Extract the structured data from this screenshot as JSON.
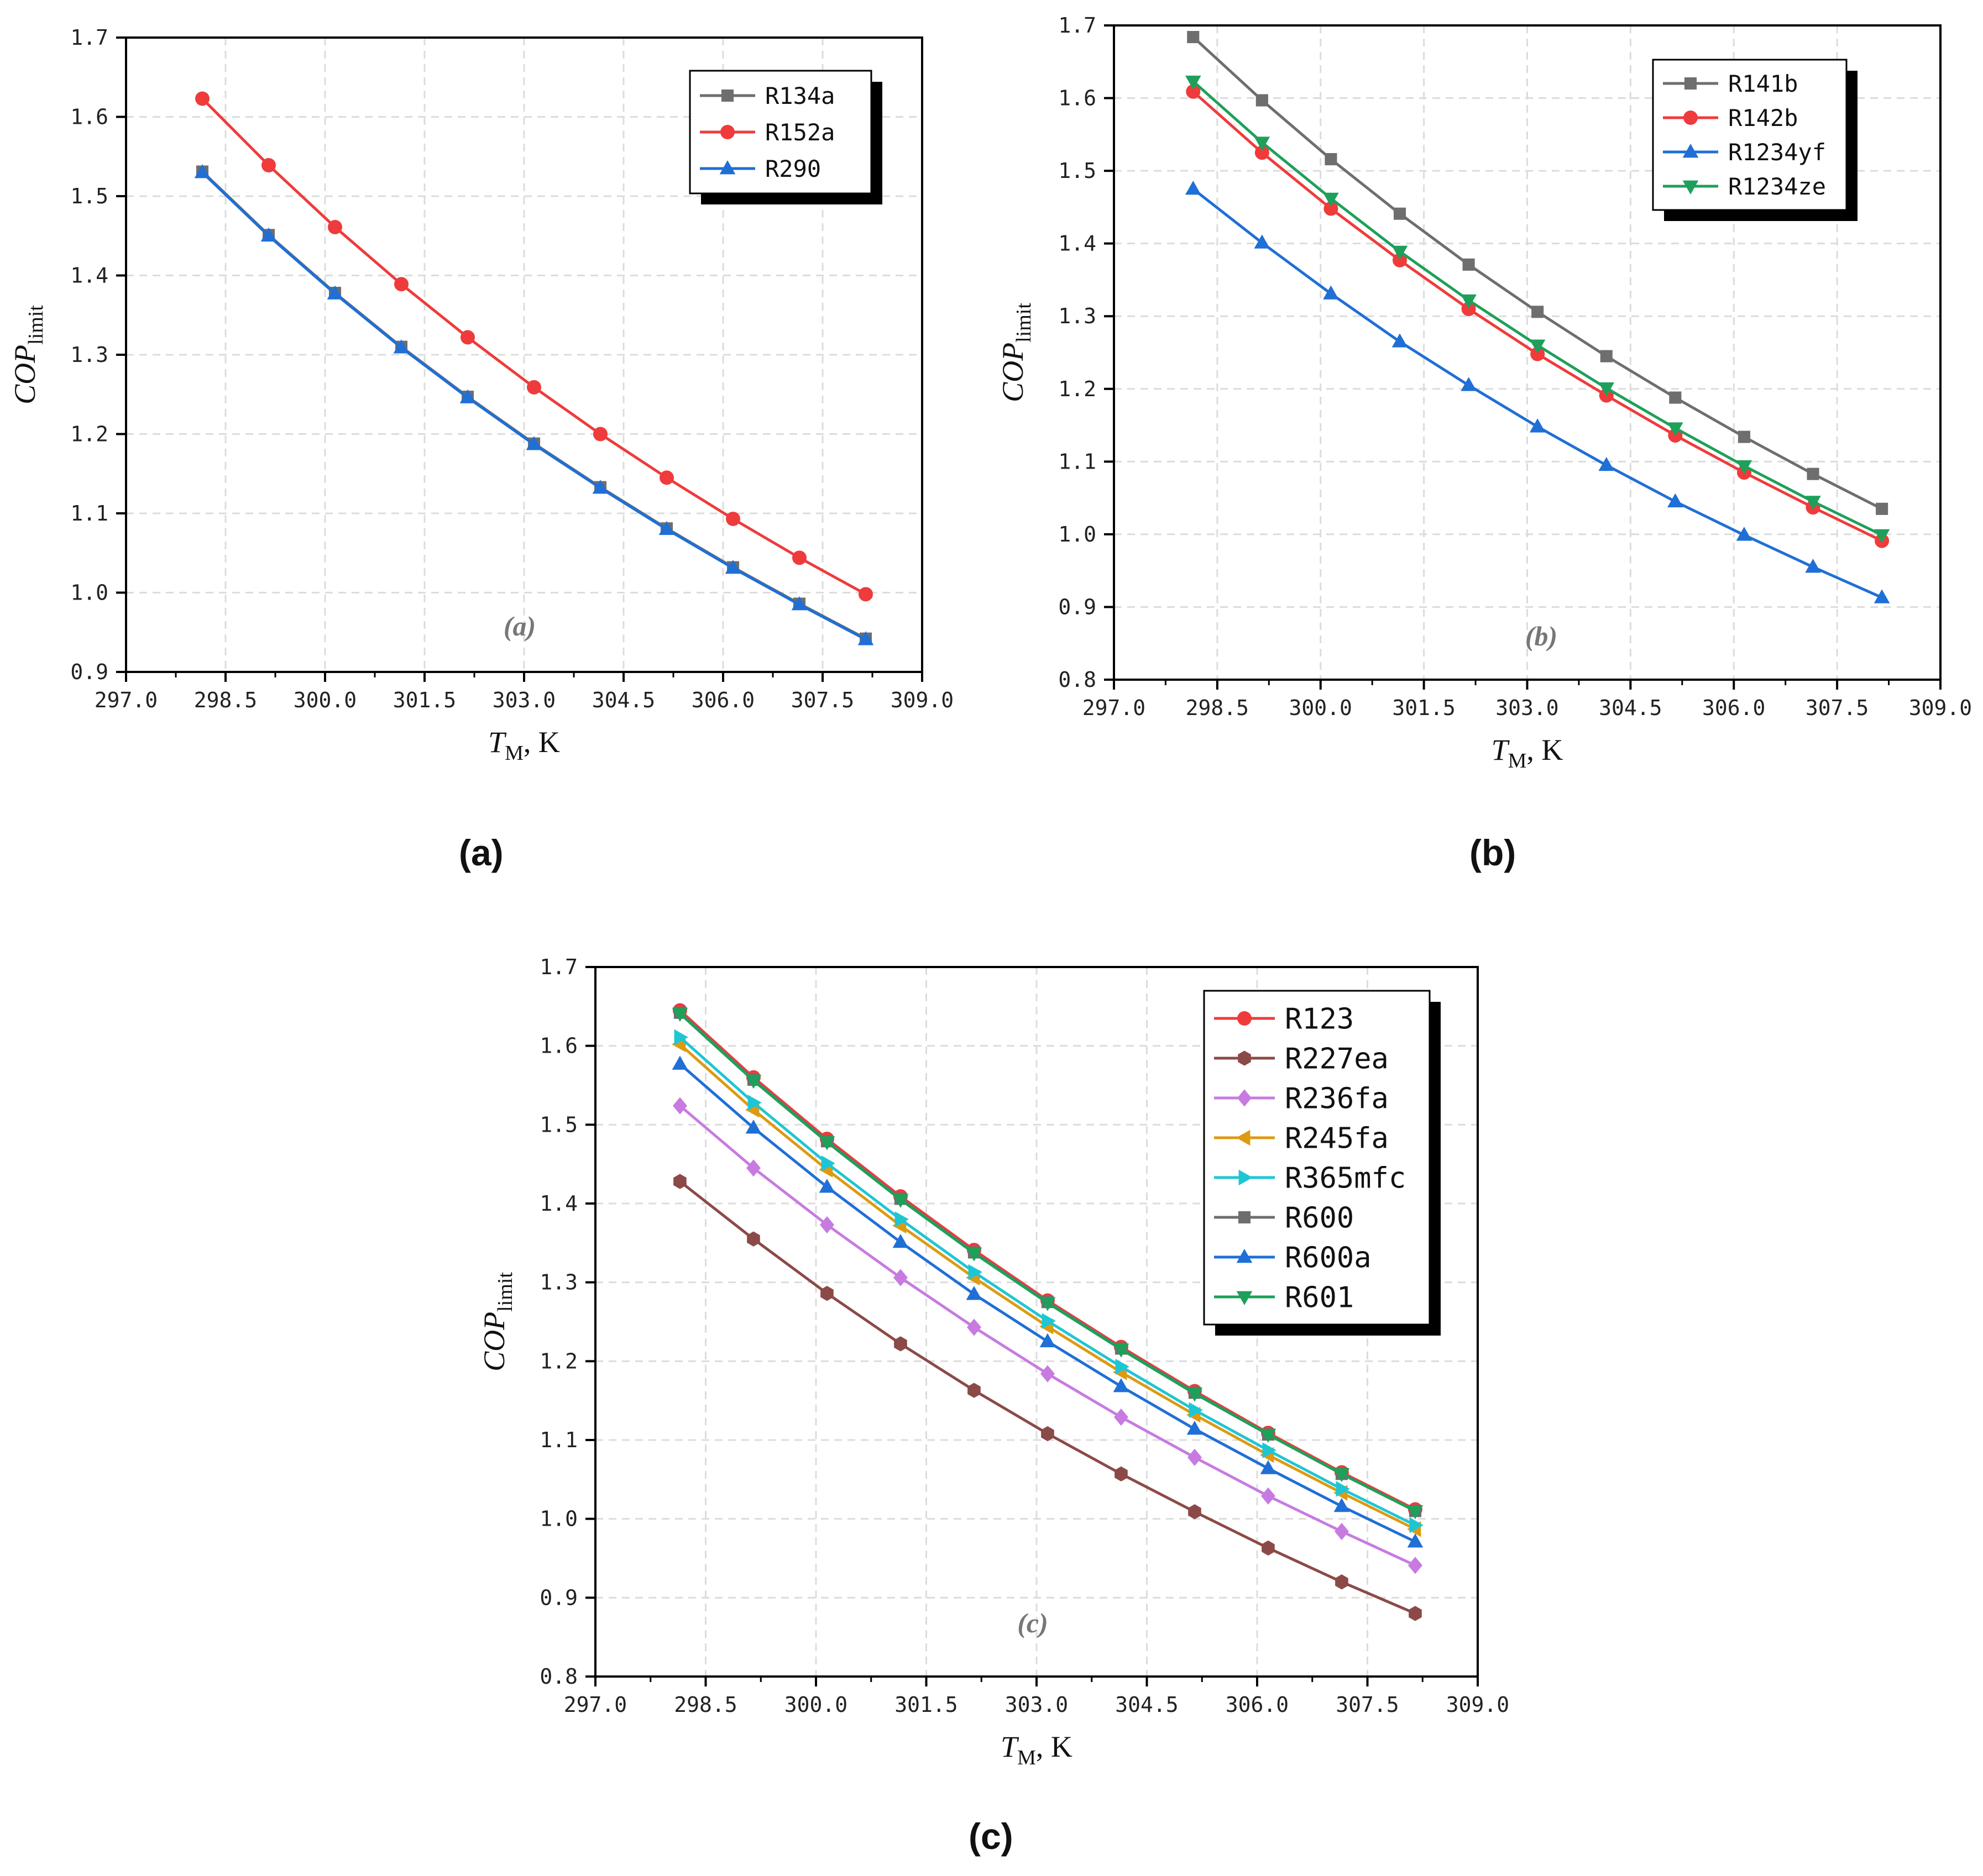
{
  "chart_data": [
    {
      "type": "line",
      "panel_label": "(a)",
      "annotation": "(a)",
      "xlabel_main": "T",
      "xlabel_sub": "M",
      "xlabel_suffix": ", K",
      "ylabel_main": "COP",
      "ylabel_sub": "limit",
      "xlim": [
        297.0,
        309.0
      ],
      "ylim": [
        0.9,
        1.7
      ],
      "x_ticks": [
        "297.0",
        "298.5",
        "300.0",
        "301.5",
        "303.0",
        "304.5",
        "306.0",
        "307.5",
        "309.0"
      ],
      "y_ticks": [
        "0.9",
        "1.0",
        "1.1",
        "1.2",
        "1.3",
        "1.4",
        "1.5",
        "1.6",
        "1.7"
      ],
      "grid": true,
      "legend_position": "top-right",
      "x": [
        298.15,
        299.15,
        300.15,
        301.15,
        302.15,
        303.15,
        304.15,
        305.15,
        306.15,
        307.15,
        308.15
      ],
      "series": [
        {
          "name": "R134a",
          "color": "#6e6e6e",
          "marker": "square",
          "values": [
            1.531,
            1.451,
            1.378,
            1.31,
            1.247,
            1.188,
            1.133,
            1.081,
            1.032,
            0.986,
            0.942
          ]
        },
        {
          "name": "R152a",
          "color": "#ef3b3b",
          "marker": "circle",
          "values": [
            1.623,
            1.539,
            1.461,
            1.389,
            1.322,
            1.259,
            1.2,
            1.145,
            1.093,
            1.044,
            0.998
          ]
        },
        {
          "name": "R290",
          "color": "#1f6fd6",
          "marker": "triangle-up",
          "values": [
            1.53,
            1.45,
            1.377,
            1.309,
            1.246,
            1.187,
            1.132,
            1.08,
            1.031,
            0.985,
            0.941
          ]
        }
      ]
    },
    {
      "type": "line",
      "panel_label": "(b)",
      "annotation": "(b)",
      "xlabel_main": "T",
      "xlabel_sub": "M",
      "xlabel_suffix": ", K",
      "ylabel_main": "COP",
      "ylabel_sub": "limit",
      "xlim": [
        297.0,
        309.0
      ],
      "ylim": [
        0.8,
        1.7
      ],
      "x_ticks": [
        "297.0",
        "298.5",
        "300.0",
        "301.5",
        "303.0",
        "304.5",
        "306.0",
        "307.5",
        "309.0"
      ],
      "y_ticks": [
        "0.8",
        "0.9",
        "1.0",
        "1.1",
        "1.2",
        "1.3",
        "1.4",
        "1.5",
        "1.6",
        "1.7"
      ],
      "grid": true,
      "legend_position": "top-right",
      "x": [
        298.15,
        299.15,
        300.15,
        301.15,
        302.15,
        303.15,
        304.15,
        305.15,
        306.15,
        307.15,
        308.15
      ],
      "series": [
        {
          "name": "R141b",
          "color": "#6e6e6e",
          "marker": "square",
          "values": [
            1.684,
            1.597,
            1.516,
            1.441,
            1.371,
            1.306,
            1.245,
            1.188,
            1.134,
            1.083,
            1.035
          ]
        },
        {
          "name": "R142b",
          "color": "#ef3b3b",
          "marker": "circle",
          "values": [
            1.609,
            1.525,
            1.448,
            1.377,
            1.31,
            1.248,
            1.191,
            1.136,
            1.085,
            1.037,
            0.991
          ]
        },
        {
          "name": "R1234yf",
          "color": "#1f6fd6",
          "marker": "triangle-up",
          "values": [
            1.475,
            1.401,
            1.331,
            1.265,
            1.205,
            1.148,
            1.095,
            1.045,
            0.999,
            0.955,
            0.913
          ]
        },
        {
          "name": "R1234ze",
          "color": "#1ea05a",
          "marker": "triangle-down",
          "values": [
            1.623,
            1.539,
            1.462,
            1.389,
            1.322,
            1.26,
            1.201,
            1.146,
            1.094,
            1.045,
            0.999
          ]
        }
      ]
    },
    {
      "type": "line",
      "panel_label": "(c)",
      "annotation": "(c)",
      "xlabel_main": "T",
      "xlabel_sub": "M",
      "xlabel_suffix": ", K",
      "ylabel_main": "COP",
      "ylabel_sub": "limit",
      "xlim": [
        297.0,
        309.0
      ],
      "ylim": [
        0.8,
        1.7
      ],
      "x_ticks": [
        "297.0",
        "298.5",
        "300.0",
        "301.5",
        "303.0",
        "304.5",
        "306.0",
        "307.5",
        "309.0"
      ],
      "y_ticks": [
        "0.8",
        "0.9",
        "1.0",
        "1.1",
        "1.2",
        "1.3",
        "1.4",
        "1.5",
        "1.6",
        "1.7"
      ],
      "grid": true,
      "legend_position": "top-right",
      "x": [
        298.15,
        299.15,
        300.15,
        301.15,
        302.15,
        303.15,
        304.15,
        305.15,
        306.15,
        307.15,
        308.15
      ],
      "series": [
        {
          "name": "R123",
          "color": "#ef3b3b",
          "marker": "circle",
          "values": [
            1.645,
            1.56,
            1.482,
            1.409,
            1.341,
            1.277,
            1.218,
            1.162,
            1.109,
            1.059,
            1.012
          ]
        },
        {
          "name": "R227ea",
          "color": "#8b4a47",
          "marker": "hexagon",
          "values": [
            1.428,
            1.355,
            1.286,
            1.222,
            1.163,
            1.108,
            1.057,
            1.009,
            0.963,
            0.92,
            0.88
          ]
        },
        {
          "name": "R236fa",
          "color": "#c77be0",
          "marker": "diamond",
          "values": [
            1.524,
            1.445,
            1.373,
            1.306,
            1.243,
            1.184,
            1.129,
            1.078,
            1.029,
            0.984,
            0.941
          ]
        },
        {
          "name": "R245fa",
          "color": "#dd9a12",
          "marker": "triangle-left",
          "values": [
            1.602,
            1.519,
            1.443,
            1.372,
            1.306,
            1.244,
            1.186,
            1.132,
            1.081,
            1.033,
            0.987
          ]
        },
        {
          "name": "R365mfc",
          "color": "#1ec6d4",
          "marker": "triangle-right",
          "values": [
            1.611,
            1.528,
            1.451,
            1.38,
            1.313,
            1.251,
            1.193,
            1.138,
            1.087,
            1.038,
            0.992
          ]
        },
        {
          "name": "R600",
          "color": "#6e6e6e",
          "marker": "square",
          "values": [
            1.642,
            1.557,
            1.479,
            1.406,
            1.338,
            1.275,
            1.216,
            1.16,
            1.107,
            1.057,
            1.01
          ]
        },
        {
          "name": "R600a",
          "color": "#1f6fd6",
          "marker": "triangle-up",
          "values": [
            1.577,
            1.496,
            1.421,
            1.351,
            1.285,
            1.225,
            1.168,
            1.114,
            1.064,
            1.016,
            0.971
          ]
        },
        {
          "name": "R601",
          "color": "#1ea05a",
          "marker": "triangle-down",
          "values": [
            1.641,
            1.556,
            1.478,
            1.405,
            1.337,
            1.274,
            1.215,
            1.159,
            1.107,
            1.057,
            1.01
          ]
        }
      ]
    }
  ]
}
